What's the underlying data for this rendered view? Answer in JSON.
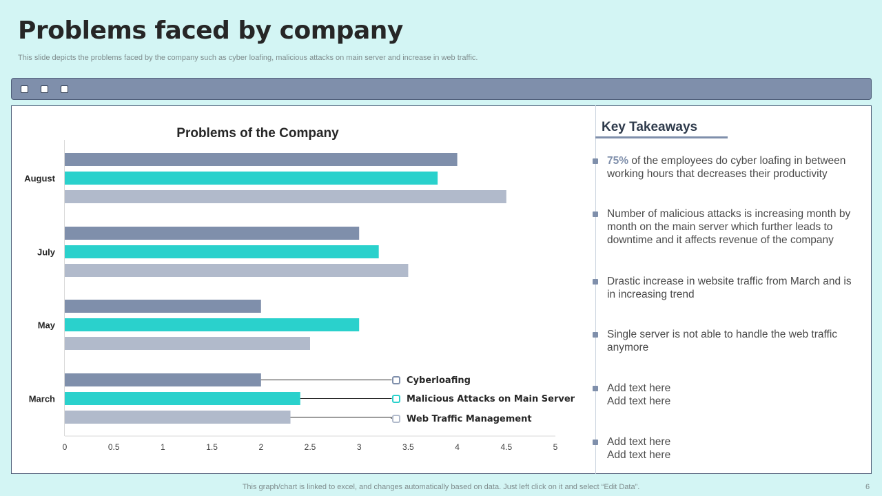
{
  "slide": {
    "title": "Problems faced by company",
    "subtitle": "This slide depicts the problems faced by the company such as cyber loafing, malicious attacks on main server and increase in web traffic.",
    "footer": "This graph/chart is linked to excel,  and changes automatically based on data. Just left click on it and select “Edit Data”.",
    "page_number": "6"
  },
  "colors": {
    "cyberloafing": "#7f8fab",
    "malicious": "#2ad1cc",
    "web_traffic": "#b1bacb",
    "window_bar": "#7f8fab",
    "background": "#d3f5f4"
  },
  "key_takeaways": {
    "title": "Key Takeaways",
    "items": [
      {
        "highlight": "75%",
        "text": " of the employees do cyber loafing in between working hours  that decreases their productivity"
      },
      {
        "highlight": "",
        "text": "Number of malicious attacks is increasing month by month  on the main server which further  leads to downtime and it affects revenue  of the company"
      },
      {
        "highlight": "",
        "text": "Drastic increase in website traffic from March and is in increasing trend"
      },
      {
        "highlight": "",
        "text": "Single server is not able to handle  the web traffic anymore"
      },
      {
        "highlight": "",
        "text": "Add text here\nAdd text here"
      },
      {
        "highlight": "",
        "text": "Add text here\nAdd text here"
      }
    ]
  },
  "chart_data": {
    "type": "bar",
    "orientation": "horizontal",
    "title": "Problems of the Company",
    "categories": [
      "March",
      "May",
      "July",
      "August"
    ],
    "series": [
      {
        "name": "Cyberloafing",
        "values": [
          2,
          2,
          3,
          4
        ]
      },
      {
        "name": "Malicious Attacks on Main Server",
        "values": [
          2.4,
          3,
          3.2,
          3.8
        ]
      },
      {
        "name": "Web Traffic Management",
        "values": [
          2.3,
          2.5,
          3.5,
          4.5
        ]
      }
    ],
    "xlim": [
      0,
      5
    ],
    "xticks": [
      "0",
      "0.5",
      "1",
      "1.5",
      "2",
      "2.5",
      "3",
      "3.5",
      "4",
      "4.5",
      "5"
    ],
    "grid": false,
    "legend": "inside-bottom-right with leader lines"
  }
}
